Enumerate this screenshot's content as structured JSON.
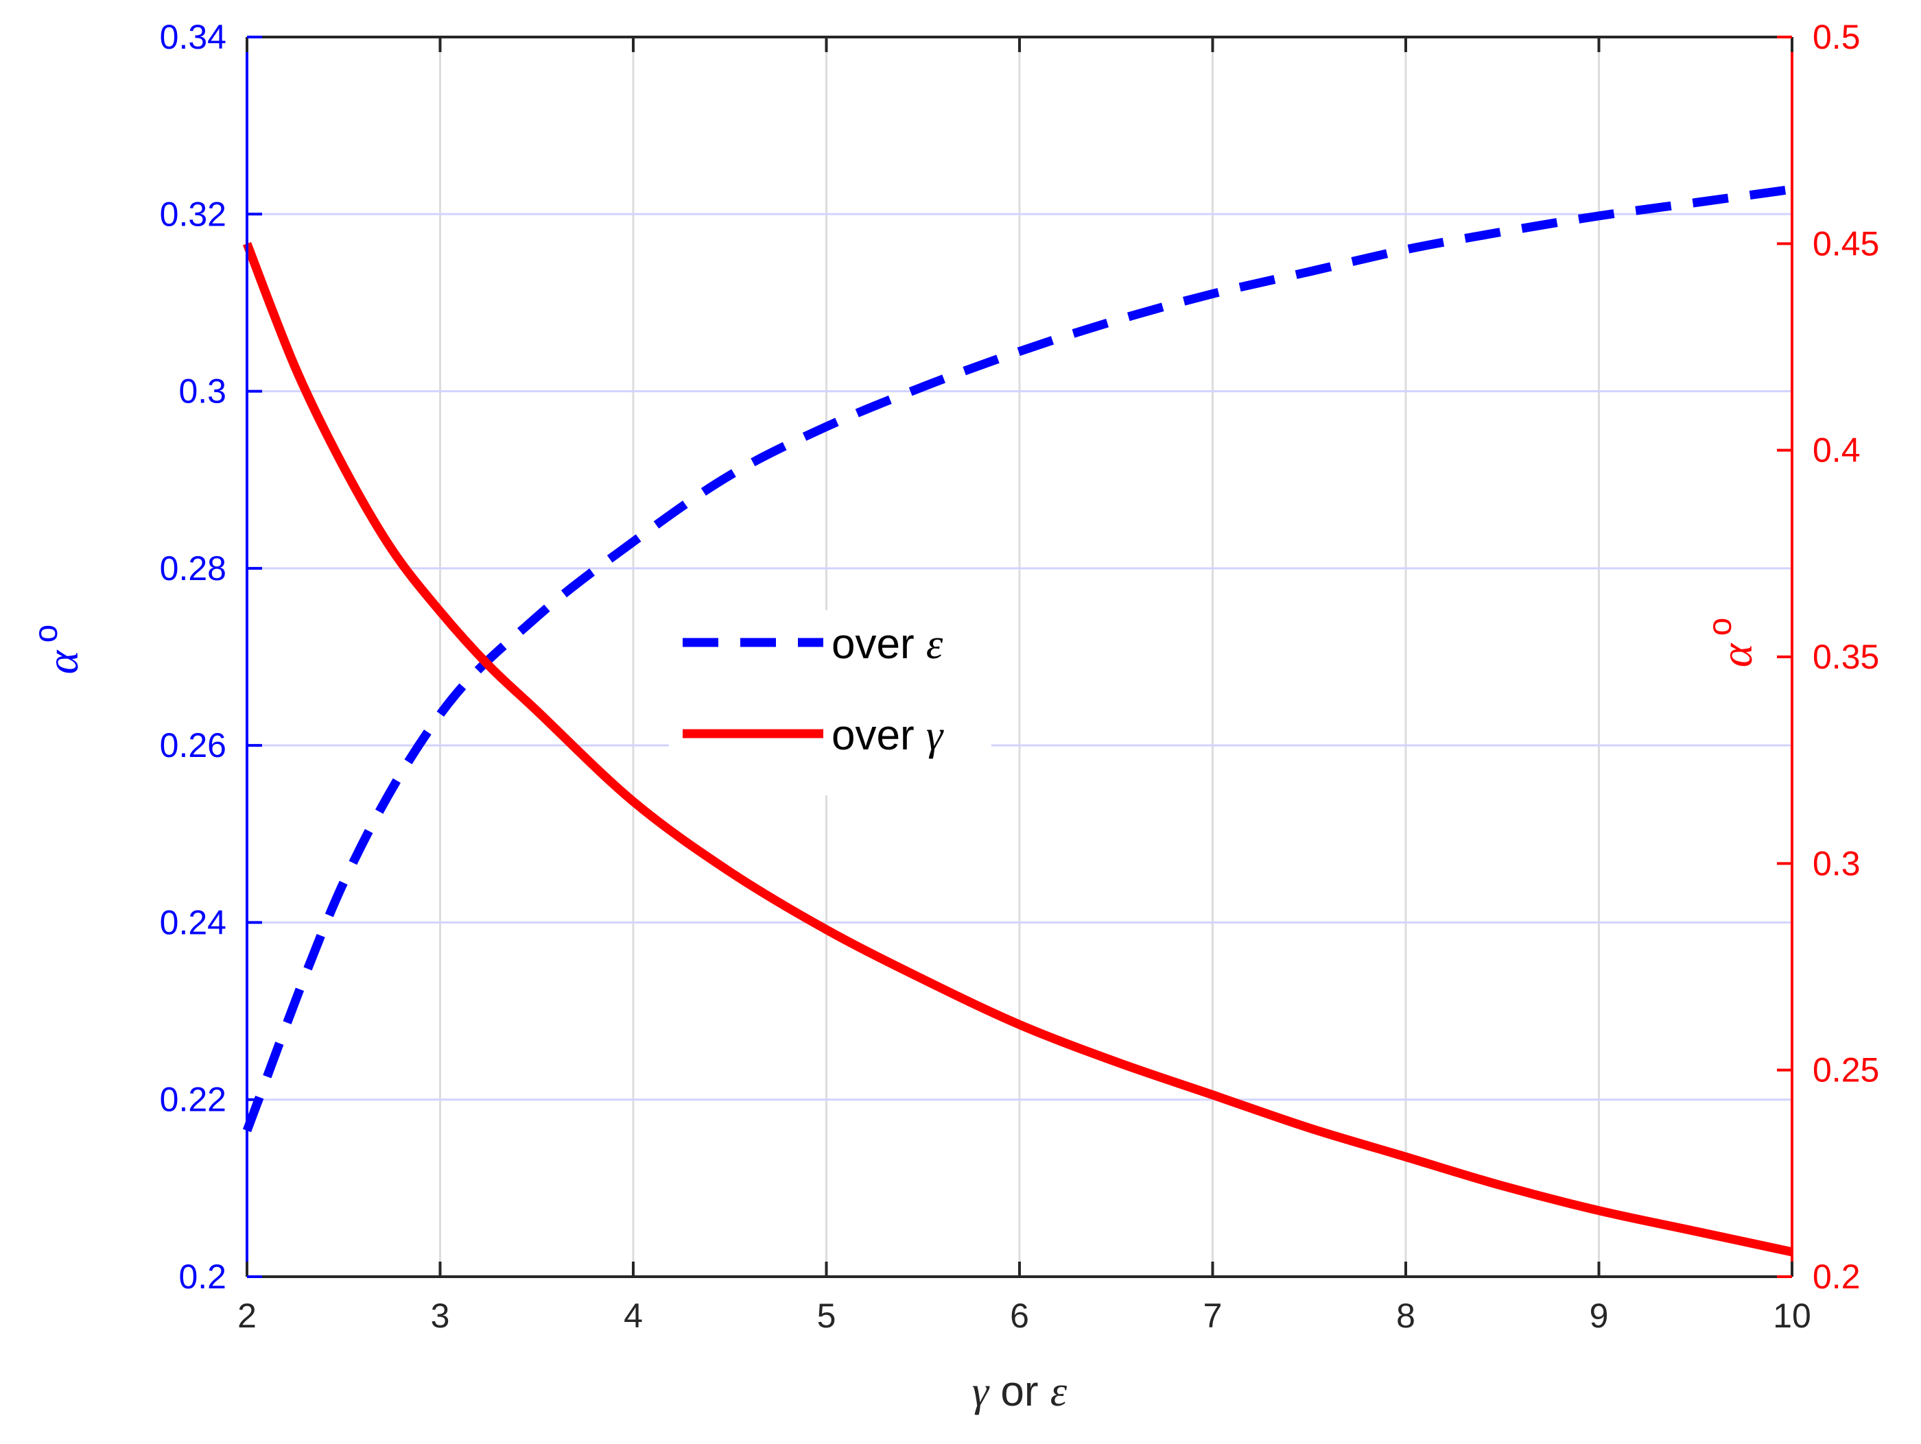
{
  "chart_data": {
    "type": "line",
    "xlabel": {
      "greek1": "γ",
      "middle": " or ",
      "greek2": "ε"
    },
    "ylabel_left": {
      "symbol": "α",
      "superscript": "o",
      "color": "#0000ff"
    },
    "ylabel_right": {
      "symbol": "α",
      "superscript": "o",
      "color": "#ff0000"
    },
    "xlim": [
      2,
      10
    ],
    "ylim_left": [
      0.2,
      0.34
    ],
    "ylim_right": [
      0.2,
      0.5
    ],
    "x_ticks": [
      "2",
      "3",
      "4",
      "5",
      "6",
      "7",
      "8",
      "9",
      "10"
    ],
    "y_ticks_left": [
      "0.2",
      "0.22",
      "0.24",
      "0.26",
      "0.28",
      "0.3",
      "0.32",
      "0.34"
    ],
    "y_ticks_right": [
      "0.2",
      "0.25",
      "0.3",
      "0.35",
      "0.4",
      "0.45",
      "0.5"
    ],
    "grid": true,
    "legend_placement": "center",
    "series": [
      {
        "name": "over ε",
        "legend_prefix": "over ",
        "legend_greek": "ε",
        "axis": "left",
        "style": "dashed",
        "color": "#0000ff",
        "x": [
          2.0,
          2.5,
          3.0,
          3.5,
          4.0,
          4.5,
          5.0,
          5.5,
          6.0,
          6.5,
          7.0,
          7.5,
          8.0,
          8.5,
          9.0,
          9.5,
          10.0
        ],
        "y": [
          0.2165,
          0.2445,
          0.2635,
          0.2745,
          0.283,
          0.2905,
          0.296,
          0.3005,
          0.3045,
          0.308,
          0.311,
          0.3135,
          0.316,
          0.318,
          0.3198,
          0.3213,
          0.3228
        ]
      },
      {
        "name": "over γ",
        "legend_prefix": "over ",
        "legend_greek": "γ",
        "axis": "right",
        "style": "solid",
        "color": "#ff0000",
        "x": [
          2.0,
          2.25,
          2.5,
          2.75,
          3.0,
          3.25,
          3.5,
          4.0,
          4.5,
          5.0,
          5.5,
          6.0,
          6.5,
          7.0,
          7.5,
          8.0,
          8.5,
          9.0,
          9.5,
          10.0
        ],
        "y": [
          0.45,
          0.42,
          0.396,
          0.376,
          0.361,
          0.348,
          0.337,
          0.315,
          0.298,
          0.284,
          0.272,
          0.261,
          0.252,
          0.244,
          0.236,
          0.229,
          0.222,
          0.216,
          0.211,
          0.206
        ]
      }
    ]
  }
}
